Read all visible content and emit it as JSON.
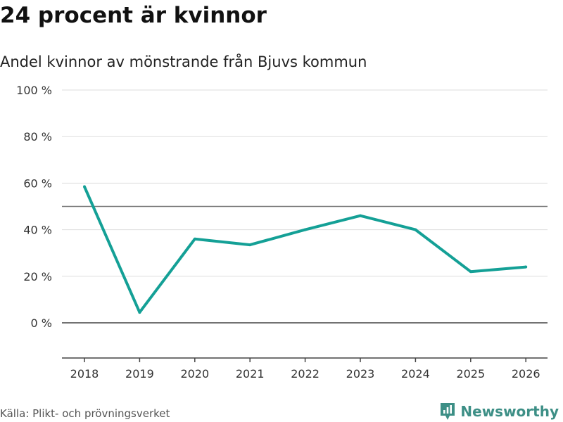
{
  "colors": {
    "line": "#14a096",
    "brand": "#3d8f86",
    "grid": "#dddddd",
    "axis": "#444444",
    "reference": "#777777"
  },
  "chart_data": {
    "type": "line",
    "title": "24 procent är kvinnor",
    "subtitle": "Andel kvinnor av mönstrande från Bjuvs kommun",
    "xlabel": "",
    "ylabel": "",
    "x": [
      "2018",
      "2019",
      "2020",
      "2021",
      "2022",
      "2023",
      "2024",
      "2025",
      "2026"
    ],
    "series": [
      {
        "name": "Andel kvinnor",
        "values": [
          58.5,
          4.5,
          36,
          33.5,
          40,
          46,
          40,
          22,
          24
        ]
      }
    ],
    "ylim": [
      -15,
      100
    ],
    "yticks": [
      0,
      20,
      40,
      60,
      80,
      100
    ],
    "ytick_labels": [
      "0 %",
      "20 %",
      "40 %",
      "60 %",
      "80 %",
      "100 %"
    ],
    "reference_line": 50,
    "grid": true,
    "legend": "none"
  },
  "footer": {
    "source": "Källa: Plikt- och prövningsverket",
    "brand_icon": "newsworthy-logo-icon",
    "brand_name": "Newsworthy"
  }
}
